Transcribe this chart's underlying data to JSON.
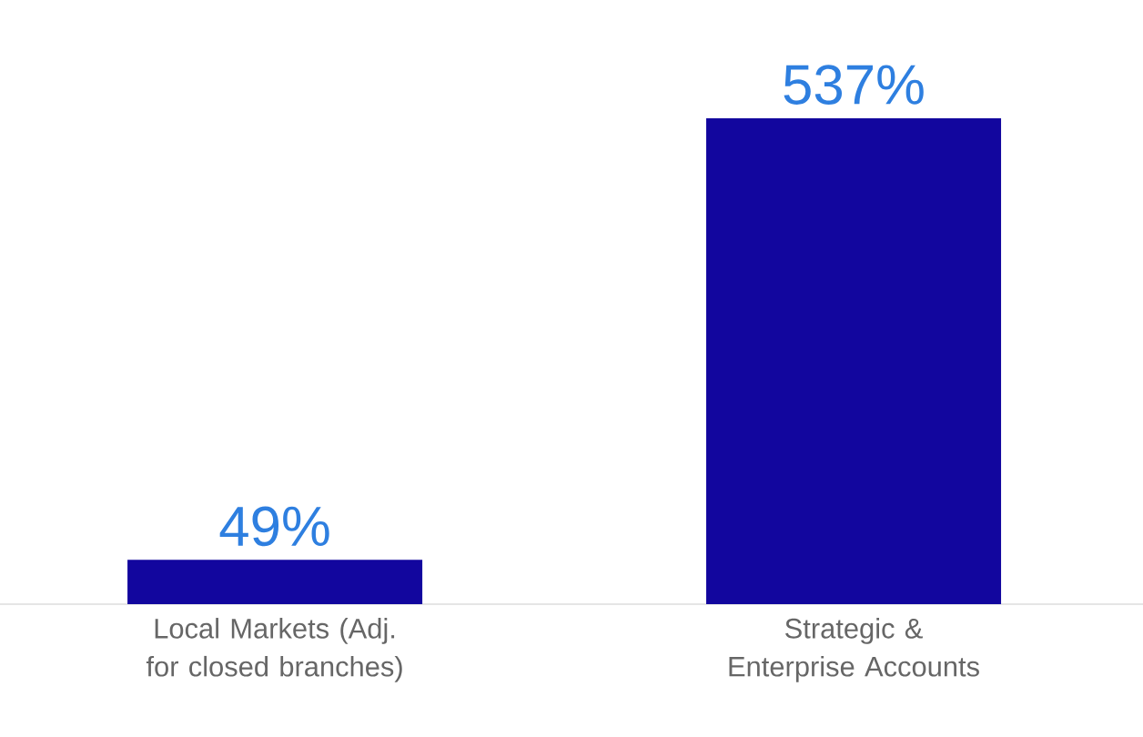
{
  "chart_data": {
    "type": "bar",
    "value_labels": [
      "49%",
      "537%"
    ],
    "categories": [
      "Local Markets (Adj. for closed branches)",
      "Strategic & Enterprise Accounts"
    ],
    "values": [
      49,
      537
    ],
    "color": "#12069e"
  }
}
